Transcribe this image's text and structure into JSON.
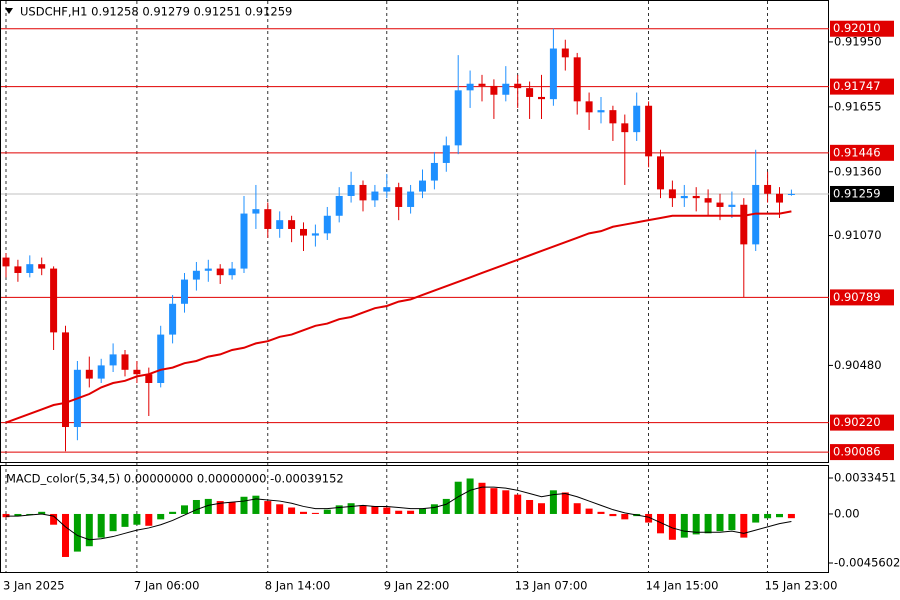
{
  "chart_data": [
    {
      "type": "candlestick",
      "title": "USDCHF,H1  0.91258 0.91279 0.91251 0.91259",
      "categories": [
        "3 Jan 2025",
        null,
        null,
        null,
        null,
        null,
        null,
        null,
        null,
        null,
        null,
        "7 Jan 06:00",
        null,
        null,
        null,
        null,
        null,
        null,
        null,
        null,
        null,
        null,
        "8 Jan 14:00",
        null,
        null,
        null,
        null,
        null,
        null,
        null,
        null,
        null,
        "9 Jan 22:00",
        null,
        null,
        null,
        null,
        null,
        null,
        null,
        null,
        null,
        null,
        "13 Jan 07:00",
        null,
        null,
        null,
        null,
        null,
        null,
        null,
        null,
        null,
        null,
        "14 Jan 15:00",
        null,
        null,
        null,
        null,
        null,
        null,
        null,
        null,
        null,
        "15 Jan 23:00",
        null,
        null
      ],
      "candles": [
        [
          0.9097,
          0.9099,
          0.9088,
          0.9093
        ],
        [
          0.9093,
          0.9096,
          0.9086,
          0.909
        ],
        [
          0.909,
          0.9098,
          0.9088,
          0.9094
        ],
        [
          0.9094,
          0.9097,
          0.9089,
          0.9092
        ],
        [
          0.9092,
          0.9093,
          0.9055,
          0.9063
        ],
        [
          0.9063,
          0.9066,
          0.9009,
          0.902
        ],
        [
          0.902,
          0.905,
          0.9014,
          0.9046
        ],
        [
          0.9046,
          0.9052,
          0.9038,
          0.9042
        ],
        [
          0.9042,
          0.9051,
          0.904,
          0.9048
        ],
        [
          0.9048,
          0.9058,
          0.9045,
          0.9053
        ],
        [
          0.9053,
          0.9055,
          0.9043,
          0.9046
        ],
        [
          0.9046,
          0.905,
          0.904,
          0.9044
        ],
        [
          0.9044,
          0.9047,
          0.9025,
          0.904
        ],
        [
          0.904,
          0.9066,
          0.9038,
          0.9062
        ],
        [
          0.9062,
          0.908,
          0.9058,
          0.9076
        ],
        [
          0.9076,
          0.909,
          0.9072,
          0.9087
        ],
        [
          0.9087,
          0.9095,
          0.9082,
          0.9091
        ],
        [
          0.9091,
          0.9096,
          0.9086,
          0.9092
        ],
        [
          0.9092,
          0.9094,
          0.9085,
          0.9089
        ],
        [
          0.9089,
          0.9095,
          0.9087,
          0.9092
        ],
        [
          0.9092,
          0.9125,
          0.909,
          0.9117
        ],
        [
          0.9117,
          0.913,
          0.911,
          0.9119
        ],
        [
          0.9119,
          0.9122,
          0.9106,
          0.911
        ],
        [
          0.911,
          0.9118,
          0.9106,
          0.9114
        ],
        [
          0.9114,
          0.9116,
          0.9104,
          0.911
        ],
        [
          0.911,
          0.9113,
          0.91,
          0.9107
        ],
        [
          0.9107,
          0.9112,
          0.9102,
          0.9108
        ],
        [
          0.9108,
          0.912,
          0.9105,
          0.9116
        ],
        [
          0.9116,
          0.9129,
          0.9113,
          0.9125
        ],
        [
          0.9125,
          0.9136,
          0.9122,
          0.913
        ],
        [
          0.913,
          0.9132,
          0.9118,
          0.9123
        ],
        [
          0.9123,
          0.913,
          0.912,
          0.9127
        ],
        [
          0.9127,
          0.9135,
          0.9124,
          0.9129
        ],
        [
          0.9129,
          0.9131,
          0.9114,
          0.912
        ],
        [
          0.912,
          0.913,
          0.9117,
          0.9127
        ],
        [
          0.9127,
          0.9137,
          0.9124,
          0.9132
        ],
        [
          0.9132,
          0.9145,
          0.9128,
          0.914
        ],
        [
          0.914,
          0.9152,
          0.9136,
          0.9148
        ],
        [
          0.9148,
          0.9189,
          0.9144,
          0.9173
        ],
        [
          0.9173,
          0.9182,
          0.9165,
          0.9176
        ],
        [
          0.9176,
          0.918,
          0.9168,
          0.9175
        ],
        [
          0.9175,
          0.9178,
          0.916,
          0.9171
        ],
        [
          0.9171,
          0.9184,
          0.9168,
          0.9176
        ],
        [
          0.9176,
          0.918,
          0.9165,
          0.9174
        ],
        [
          0.9174,
          0.9177,
          0.916,
          0.917
        ],
        [
          0.917,
          0.918,
          0.916,
          0.9169
        ],
        [
          0.9169,
          0.9201,
          0.9166,
          0.9192
        ],
        [
          0.9192,
          0.9196,
          0.9182,
          0.9188
        ],
        [
          0.9188,
          0.919,
          0.9162,
          0.9168
        ],
        [
          0.9168,
          0.9172,
          0.9155,
          0.9163
        ],
        [
          0.9163,
          0.917,
          0.9158,
          0.9164
        ],
        [
          0.9164,
          0.9166,
          0.915,
          0.9158
        ],
        [
          0.9158,
          0.9162,
          0.913,
          0.9154
        ],
        [
          0.9154,
          0.9172,
          0.915,
          0.9166
        ],
        [
          0.9166,
          0.9168,
          0.9138,
          0.9143
        ],
        [
          0.9143,
          0.9146,
          0.9124,
          0.9128
        ],
        [
          0.9128,
          0.9132,
          0.912,
          0.9124
        ],
        [
          0.9124,
          0.913,
          0.912,
          0.9125
        ],
        [
          0.9125,
          0.9129,
          0.9118,
          0.9124
        ],
        [
          0.9124,
          0.9128,
          0.9116,
          0.9122
        ],
        [
          0.9122,
          0.9126,
          0.9114,
          0.912
        ],
        [
          0.912,
          0.9127,
          0.9115,
          0.9121
        ],
        [
          0.9121,
          0.9124,
          0.9079,
          0.9103
        ],
        [
          0.9103,
          0.9146,
          0.91,
          0.913
        ],
        [
          0.913,
          0.9136,
          0.9122,
          0.9126
        ],
        [
          0.9126,
          0.9129,
          0.9115,
          0.9122
        ],
        [
          0.91258,
          0.91279,
          0.91251,
          0.91259
        ]
      ],
      "bull_color": "#1e90ff",
      "bear_color": "#e00000",
      "ma_values": [
        0.9022,
        0.9024,
        0.9026,
        0.9028,
        0.903,
        0.9031,
        0.9033,
        0.9035,
        0.9038,
        0.904,
        0.9041,
        0.9043,
        0.9044,
        0.9046,
        0.9047,
        0.9049,
        0.905,
        0.9052,
        0.9053,
        0.9055,
        0.9056,
        0.9058,
        0.9059,
        0.9061,
        0.9062,
        0.9064,
        0.9066,
        0.9067,
        0.9069,
        0.907,
        0.9072,
        0.9074,
        0.9075,
        0.9077,
        0.9078,
        0.908,
        0.9082,
        0.9084,
        0.9086,
        0.9088,
        0.909,
        0.9092,
        0.9094,
        0.9096,
        0.9098,
        0.91,
        0.9102,
        0.9104,
        0.9106,
        0.9108,
        0.9109,
        0.9111,
        0.9112,
        0.9113,
        0.9114,
        0.9115,
        0.9116,
        0.9116,
        0.9116,
        0.9116,
        0.9116,
        0.9116,
        0.9116,
        0.9117,
        0.9117,
        0.9117,
        0.9118
      ],
      "ma_color": "#e00000",
      "ylim": [
        0.90041,
        0.92136
      ],
      "yticks": [
        {
          "value": 0.9195,
          "label": "0.91950"
        },
        {
          "value": 0.91655,
          "label": "0.91655"
        },
        {
          "value": 0.9136,
          "label": "0.91360"
        },
        {
          "value": 0.9107,
          "label": "0.91070"
        },
        {
          "value": 0.9048,
          "label": "0.90480"
        }
      ],
      "levels": [
        {
          "value": 0.9201,
          "label": "0.92010"
        },
        {
          "value": 0.91747,
          "label": "0.91747"
        },
        {
          "value": 0.91446,
          "label": "0.91446"
        },
        {
          "value": 0.90789,
          "label": "0.90789"
        },
        {
          "value": 0.9022,
          "label": "0.90220"
        },
        {
          "value": 0.90086,
          "label": "0.90086"
        }
      ],
      "level_color": "#e00000",
      "last_price": {
        "value": 0.91259,
        "label": "0.91259"
      },
      "grid": true
    },
    {
      "type": "macd",
      "title": "MACD_color(5,34,5) 0.00000000 0.00000000 -0.00039152",
      "values": [
        -0.0003,
        -0.0002,
        0.0,
        0.0002,
        -0.001,
        -0.004,
        -0.0035,
        -0.003,
        -0.0022,
        -0.0016,
        -0.0012,
        -0.001,
        -0.0011,
        -0.0005,
        0.0002,
        0.0008,
        0.0013,
        0.0014,
        0.0012,
        0.0011,
        0.0016,
        0.0017,
        0.0012,
        0.0009,
        0.0006,
        0.0002,
        0.0001,
        0.0004,
        0.0008,
        0.001,
        0.0008,
        0.0007,
        0.0006,
        0.0003,
        0.0003,
        0.0005,
        0.0009,
        0.0014,
        0.003,
        0.0033,
        0.0029,
        0.0024,
        0.0022,
        0.0018,
        0.0013,
        0.001,
        0.0022,
        0.002,
        0.001,
        0.0005,
        0.0002,
        -0.0002,
        -0.0005,
        -0.0002,
        -0.0008,
        -0.0018,
        -0.0024,
        -0.0022,
        -0.0019,
        -0.0018,
        -0.0016,
        -0.0015,
        -0.0022,
        -0.0008,
        -0.0004,
        -0.0003,
        -0.00039152
      ],
      "signal": [
        -0.0002,
        -0.0002,
        -0.0001,
        0.0,
        -0.0002,
        -0.0012,
        -0.002,
        -0.0024,
        -0.0023,
        -0.0021,
        -0.0018,
        -0.0015,
        -0.0013,
        -0.001,
        -0.0006,
        -0.0001,
        0.0004,
        0.0008,
        0.001,
        0.0011,
        0.0012,
        0.0014,
        0.0013,
        0.0012,
        0.001,
        0.0007,
        0.0005,
        0.0005,
        0.0006,
        0.0007,
        0.0008,
        0.0007,
        0.0007,
        0.0006,
        0.0005,
        0.0005,
        0.0006,
        0.0009,
        0.0016,
        0.0022,
        0.0025,
        0.0025,
        0.0024,
        0.0022,
        0.0019,
        0.0016,
        0.0018,
        0.0019,
        0.0016,
        0.0012,
        0.0008,
        0.0004,
        0.0001,
        -0.0001,
        -0.0003,
        -0.0008,
        -0.0013,
        -0.0016,
        -0.0017,
        -0.0017,
        -0.0017,
        -0.0016,
        -0.0018,
        -0.0015,
        -0.0012,
        -0.0009,
        -0.0007
      ],
      "up_color": "#00a000",
      "down_color": "#ff0000",
      "ylim": [
        -0.0053972,
        0.004461
      ],
      "yticks": [
        {
          "value": 0.0033451,
          "label": "0.0033451"
        },
        {
          "value": 0,
          "label": "0.00"
        },
        {
          "value": -0.0045602,
          "label": "-0.0045602"
        }
      ]
    }
  ]
}
